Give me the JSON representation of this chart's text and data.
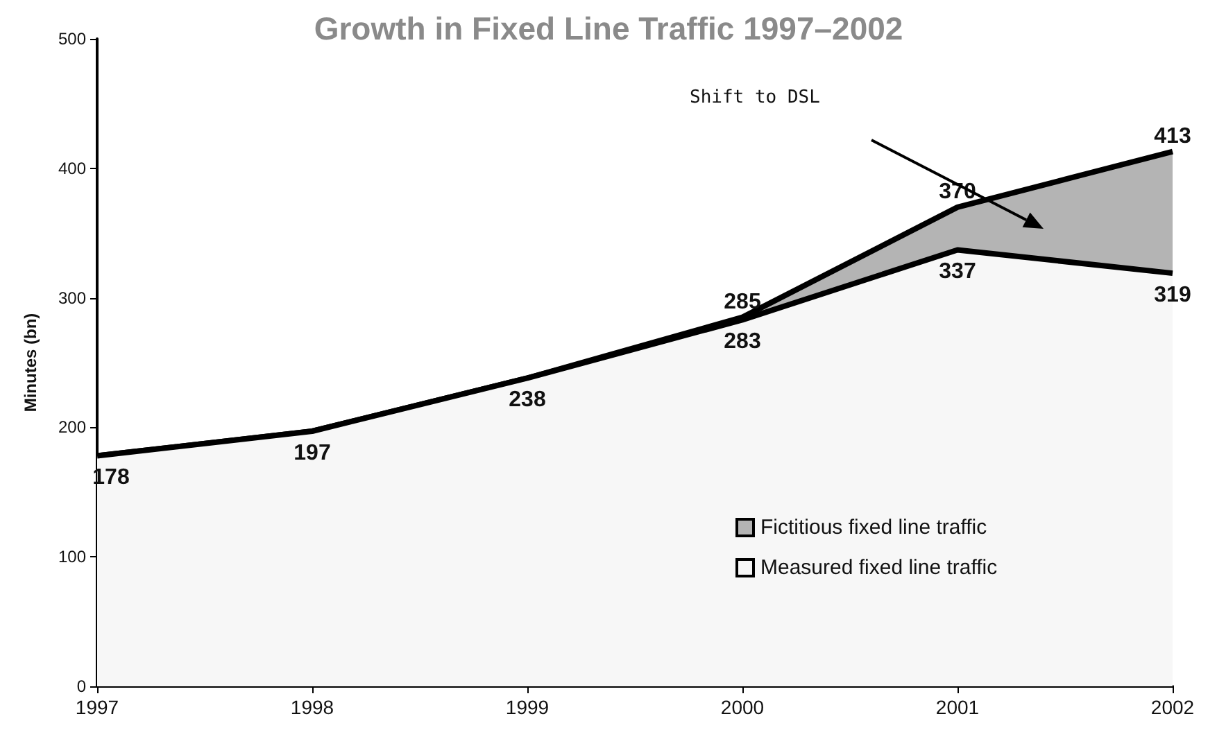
{
  "chart_data": {
    "type": "area",
    "title": "Growth in Fixed Line Traffic 1997–2002",
    "ylabel": "Minutes (bn)",
    "x": [
      1997,
      1998,
      1999,
      2000,
      2001,
      2002
    ],
    "xlim": [
      1997,
      2002
    ],
    "xticks": [
      1997,
      1998,
      1999,
      2000,
      2001,
      2002
    ],
    "ylim": [
      0,
      500
    ],
    "yticks": [
      0,
      100,
      200,
      300,
      400,
      500
    ],
    "series": [
      {
        "name": "Fictitious fixed line traffic",
        "color": "#b4b4b4",
        "values": [
          178,
          197,
          238,
          285,
          370,
          413
        ],
        "value_labels": [
          null,
          null,
          null,
          "285",
          "370",
          "413"
        ]
      },
      {
        "name": "Measured fixed line traffic",
        "color": "#f7f7f7",
        "values": [
          178,
          197,
          238,
          283,
          337,
          319
        ],
        "value_labels": [
          "178",
          "197",
          "238",
          "283",
          "337",
          "319"
        ]
      }
    ],
    "annotations": [
      "Shift to DSL"
    ],
    "grid": false,
    "legend": "bottom right",
    "line_style": "solid",
    "marker": "none"
  }
}
